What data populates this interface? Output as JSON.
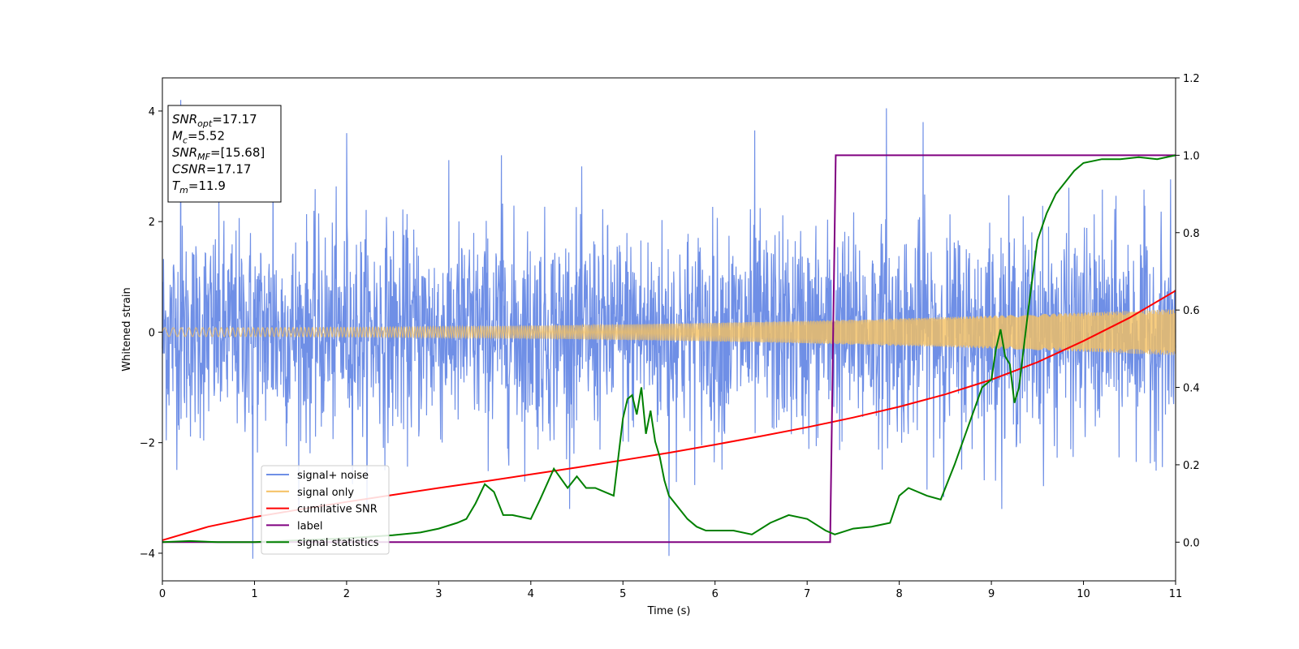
{
  "chart_data": {
    "type": "line",
    "xlabel": "Time (s)",
    "ylabel": "Whitened strain",
    "xlim": [
      0,
      11
    ],
    "ylim_left": [
      -4.5,
      4.6
    ],
    "ylim_right": [
      -0.1,
      1.2
    ],
    "xticks": [
      "0",
      "1",
      "2",
      "3",
      "4",
      "5",
      "6",
      "7",
      "8",
      "9",
      "10",
      "11"
    ],
    "yticks_left": [
      "−4",
      "−2",
      "0",
      "2",
      "4"
    ],
    "yticks_right": [
      "0.0",
      "0.2",
      "0.4",
      "0.6",
      "0.8",
      "1.0",
      "1.2"
    ],
    "annotation": [
      {
        "sym": "SNR",
        "sub": "opt",
        "rest": "=17.17"
      },
      {
        "sym": "M",
        "sub": "c",
        "rest": "=5.52"
      },
      {
        "sym": "SNR",
        "sub": "MF",
        "rest": "=[15.68]"
      },
      {
        "sym": "CSNR",
        "sub": "",
        "rest": "=17.17"
      },
      {
        "sym": "T",
        "sub": "m",
        "rest": "=11.9"
      }
    ],
    "legend_position": "lower-left",
    "colors": {
      "noise": "#6f8fe6",
      "signal": "#f5c060",
      "cumulative": "#ff0000",
      "label": "#800080",
      "stats": "#008000"
    },
    "series": [
      {
        "name": "signal+ noise",
        "axis": "left",
        "description": "noisy whitened strain, roughly within ±2.5 with spikes to ±4",
        "envelope_spikes": [
          {
            "x": 0.2,
            "y": 4.2
          },
          {
            "x": 0.98,
            "y": -4.1
          },
          {
            "x": 1.2,
            "y": 3.4
          },
          {
            "x": 2.0,
            "y": 3.6
          },
          {
            "x": 3.68,
            "y": 3.2
          },
          {
            "x": 5.5,
            "y": -4.05
          },
          {
            "x": 6.43,
            "y": 3.65
          },
          {
            "x": 7.86,
            "y": 4.05
          },
          {
            "x": 8.26,
            "y": 3.8
          }
        ]
      },
      {
        "name": "signal only",
        "axis": "left",
        "description": "chirp with amplitude growing from about 0.08 at t=0 to about 0.42 at t=11"
      },
      {
        "name": "cumilative SNR",
        "axis": "right",
        "x": [
          0,
          0.5,
          1,
          1.5,
          2,
          2.5,
          3,
          3.5,
          4,
          4.5,
          5,
          5.5,
          6,
          6.5,
          7,
          7.5,
          8,
          8.5,
          9,
          9.5,
          10,
          10.5,
          11
        ],
        "y": [
          0.005,
          0.04,
          0.065,
          0.085,
          0.104,
          0.122,
          0.14,
          0.157,
          0.175,
          0.193,
          0.212,
          0.231,
          0.252,
          0.274,
          0.297,
          0.322,
          0.35,
          0.382,
          0.42,
          0.465,
          0.52,
          0.58,
          0.65
        ]
      },
      {
        "name": "label",
        "axis": "right",
        "x": [
          0,
          7.25,
          7.31,
          11
        ],
        "y": [
          0,
          0,
          1,
          1
        ]
      },
      {
        "name": "signal statistics",
        "axis": "right",
        "x": [
          0,
          0.3,
          0.6,
          1,
          1.5,
          2,
          2.5,
          2.8,
          3,
          3.2,
          3.3,
          3.4,
          3.5,
          3.6,
          3.7,
          3.8,
          4,
          4.1,
          4.25,
          4.4,
          4.5,
          4.6,
          4.7,
          4.8,
          4.9,
          5.0,
          5.05,
          5.1,
          5.15,
          5.2,
          5.25,
          5.3,
          5.35,
          5.4,
          5.45,
          5.5,
          5.6,
          5.7,
          5.8,
          5.9,
          6.0,
          6.2,
          6.4,
          6.6,
          6.8,
          7.0,
          7.2,
          7.3,
          7.5,
          7.7,
          7.9,
          8.0,
          8.1,
          8.3,
          8.45,
          8.6,
          8.75,
          8.9,
          9.0,
          9.05,
          9.1,
          9.15,
          9.2,
          9.25,
          9.3,
          9.4,
          9.5,
          9.6,
          9.7,
          9.8,
          9.9,
          10,
          10.2,
          10.4,
          10.6,
          10.8,
          11
        ],
        "y": [
          0.0,
          0.003,
          0.0,
          0.0,
          0.005,
          0.01,
          0.018,
          0.025,
          0.035,
          0.05,
          0.06,
          0.1,
          0.15,
          0.13,
          0.07,
          0.07,
          0.06,
          0.11,
          0.19,
          0.14,
          0.17,
          0.14,
          0.14,
          0.13,
          0.12,
          0.32,
          0.37,
          0.38,
          0.33,
          0.4,
          0.28,
          0.34,
          0.26,
          0.22,
          0.16,
          0.12,
          0.09,
          0.06,
          0.04,
          0.03,
          0.03,
          0.03,
          0.02,
          0.05,
          0.07,
          0.06,
          0.03,
          0.02,
          0.035,
          0.04,
          0.05,
          0.12,
          0.14,
          0.12,
          0.11,
          0.2,
          0.3,
          0.4,
          0.42,
          0.5,
          0.55,
          0.48,
          0.46,
          0.36,
          0.4,
          0.6,
          0.78,
          0.85,
          0.9,
          0.93,
          0.96,
          0.98,
          0.99,
          0.99,
          0.995,
          0.99,
          1.0
        ]
      }
    ]
  }
}
